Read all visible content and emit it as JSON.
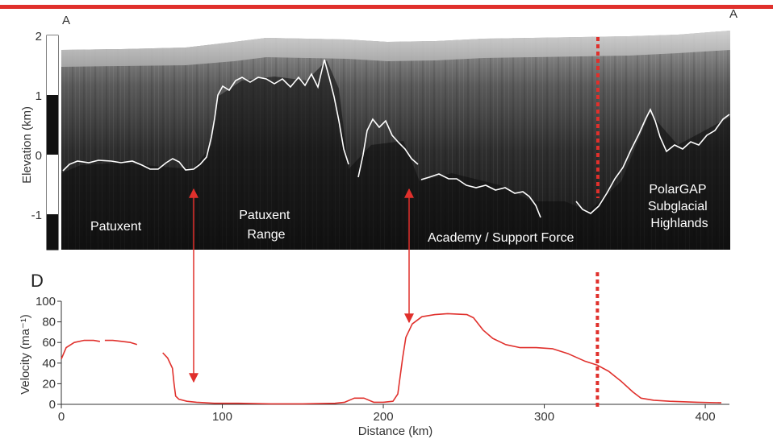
{
  "figure": {
    "corner_left": "A",
    "corner_right": "A",
    "panel_letter_bottom": "D",
    "accent_color": "#e0302c"
  },
  "chart_data": [
    {
      "type": "radargram",
      "ylabel": "Elevation (km)",
      "ylim": [
        -1.5,
        2
      ],
      "yticks": [
        "2",
        "1",
        "0",
        "-1"
      ],
      "scale_bar_segments": [
        "white",
        "black",
        "white",
        "black"
      ],
      "regions": [
        "Patuxent",
        "Patuxent Range",
        "Academy / Support Force",
        "PolarGAP Subglacial Highlands"
      ],
      "region_lines": {
        "patuxent_range": [
          "Patuxent",
          "Range"
        ],
        "polargap": [
          "PolarGAP",
          "Subglacial",
          "Highlands"
        ]
      },
      "annotations": [
        {
          "type": "dotted-line",
          "x_km": 333,
          "color": "#e0302c"
        },
        {
          "type": "double-arrow",
          "x_km": 81
        },
        {
          "type": "double-arrow",
          "x_km": 215
        }
      ]
    },
    {
      "type": "line",
      "xlabel": "Distance (km)",
      "ylabel": "Velocity (ma⁻¹)",
      "xlim": [
        0,
        415
      ],
      "ylim": [
        0,
        100
      ],
      "xticks": [
        "0",
        "100",
        "200",
        "300",
        "400"
      ],
      "yticks": [
        "0",
        "20",
        "40",
        "60",
        "80",
        "100"
      ],
      "series": [
        {
          "color": "#e0302c",
          "segments": [
            [
              [
                0,
                44
              ],
              [
                3,
                55
              ],
              [
                8,
                60
              ],
              [
                14,
                62
              ],
              [
                20,
                62
              ],
              [
                24,
                61
              ]
            ],
            [
              [
                27,
                62
              ],
              [
                32,
                62
              ],
              [
                38,
                61
              ],
              [
                43,
                60
              ],
              [
                47,
                58
              ]
            ],
            [
              [
                63,
                50
              ],
              [
                66,
                45
              ],
              [
                69,
                35
              ],
              [
                70,
                20
              ],
              [
                71,
                8
              ],
              [
                73,
                5
              ],
              [
                78,
                3
              ],
              [
                84,
                2
              ],
              [
                95,
                1
              ],
              [
                110,
                1
              ],
              [
                130,
                0.5
              ],
              [
                150,
                0.5
              ],
              [
                170,
                1
              ],
              [
                176,
                2
              ],
              [
                182,
                6
              ],
              [
                188,
                6
              ],
              [
                194,
                2
              ],
              [
                200,
                2
              ],
              [
                206,
                3
              ],
              [
                209,
                10
              ],
              [
                212,
                45
              ],
              [
                214,
                65
              ],
              [
                218,
                78
              ],
              [
                224,
                85
              ],
              [
                232,
                87
              ],
              [
                240,
                88
              ],
              [
                252,
                87
              ],
              [
                256,
                84
              ],
              [
                262,
                72
              ],
              [
                268,
                64
              ],
              [
                276,
                58
              ],
              [
                285,
                55
              ],
              [
                295,
                55
              ],
              [
                305,
                54
              ],
              [
                315,
                49
              ],
              [
                325,
                42
              ],
              [
                333,
                38
              ],
              [
                340,
                32
              ],
              [
                348,
                22
              ],
              [
                355,
                12
              ],
              [
                360,
                6
              ],
              [
                368,
                4
              ],
              [
                378,
                3
              ],
              [
                395,
                2
              ],
              [
                410,
                1.5
              ]
            ]
          ]
        }
      ],
      "annotations": [
        {
          "type": "dotted-line",
          "x_km": 333
        }
      ]
    }
  ]
}
